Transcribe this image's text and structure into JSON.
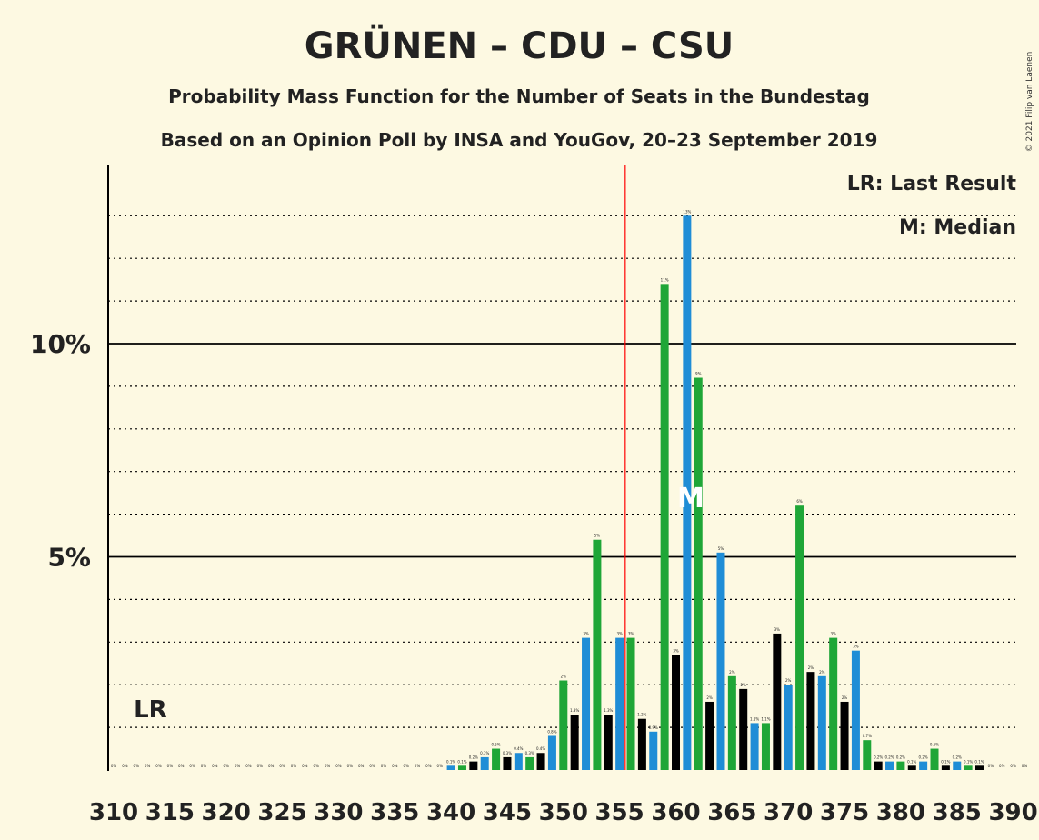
{
  "page": {
    "title": "GRÜNEN – CDU – CSU",
    "subtitle1": "Probability Mass Function for the Number of Seats in the Bundestag",
    "subtitle2": "Based on an Opinion Poll by INSA and YouGov, 20–23 September 2019",
    "legend_lr": "LR: Last Result",
    "legend_m": "M: Median",
    "copyright": "© 2021 Filip van Laenen",
    "lr_label": "LR",
    "median_label": "M"
  },
  "colors": {
    "background": "#fdf9e2",
    "black": "#000000",
    "blue": "#1f8dd6",
    "green": "#1fa637",
    "majority_line": "#ff0000"
  },
  "chart_data": {
    "type": "bar",
    "x_start": 310,
    "x_end": 390,
    "ylim": [
      0,
      14
    ],
    "yticks": [
      {
        "value": 5,
        "label": "5%"
      },
      {
        "value": 10,
        "label": "10%"
      }
    ],
    "x_tick_labels": [
      "310",
      "315",
      "320",
      "325",
      "330",
      "335",
      "340",
      "345",
      "350",
      "355",
      "360",
      "365",
      "370",
      "375",
      "380",
      "385",
      "390"
    ],
    "majority_seat": 355.5,
    "last_result_seat": 311,
    "median_seat": 361,
    "bar_color_cycle": [
      "blue",
      "green",
      "black"
    ],
    "bars": [
      {
        "seat": 310,
        "value": 0,
        "label": "0%"
      },
      {
        "seat": 311,
        "value": 0,
        "label": "0%"
      },
      {
        "seat": 312,
        "value": 0,
        "label": "0%"
      },
      {
        "seat": 313,
        "value": 0,
        "label": "0%"
      },
      {
        "seat": 314,
        "value": 0,
        "label": "0%"
      },
      {
        "seat": 315,
        "value": 0,
        "label": "0%"
      },
      {
        "seat": 316,
        "value": 0,
        "label": "0%"
      },
      {
        "seat": 317,
        "value": 0,
        "label": "0%"
      },
      {
        "seat": 318,
        "value": 0,
        "label": "0%"
      },
      {
        "seat": 319,
        "value": 0,
        "label": "0%"
      },
      {
        "seat": 320,
        "value": 0,
        "label": "0%"
      },
      {
        "seat": 321,
        "value": 0,
        "label": "0%"
      },
      {
        "seat": 322,
        "value": 0,
        "label": "0%"
      },
      {
        "seat": 323,
        "value": 0,
        "label": "0%"
      },
      {
        "seat": 324,
        "value": 0,
        "label": "0%"
      },
      {
        "seat": 325,
        "value": 0,
        "label": "0%"
      },
      {
        "seat": 326,
        "value": 0,
        "label": "0%"
      },
      {
        "seat": 327,
        "value": 0,
        "label": "0%"
      },
      {
        "seat": 328,
        "value": 0,
        "label": "0%"
      },
      {
        "seat": 329,
        "value": 0,
        "label": "0%"
      },
      {
        "seat": 330,
        "value": 0,
        "label": "0%"
      },
      {
        "seat": 331,
        "value": 0,
        "label": "0%"
      },
      {
        "seat": 332,
        "value": 0,
        "label": "0%"
      },
      {
        "seat": 333,
        "value": 0,
        "label": "0%"
      },
      {
        "seat": 334,
        "value": 0,
        "label": "0%"
      },
      {
        "seat": 335,
        "value": 0,
        "label": "0%"
      },
      {
        "seat": 336,
        "value": 0,
        "label": "0%"
      },
      {
        "seat": 337,
        "value": 0,
        "label": "0%"
      },
      {
        "seat": 338,
        "value": 0,
        "label": "0%"
      },
      {
        "seat": 339,
        "value": 0,
        "label": "0%"
      },
      {
        "seat": 340,
        "value": 0.1,
        "label": "0.1%"
      },
      {
        "seat": 341,
        "value": 0.1,
        "label": "0.1%"
      },
      {
        "seat": 342,
        "value": 0.2,
        "label": "0.2%"
      },
      {
        "seat": 343,
        "value": 0.3,
        "label": "0.3%"
      },
      {
        "seat": 344,
        "value": 0.5,
        "label": "0.5%"
      },
      {
        "seat": 345,
        "value": 0.3,
        "label": "0.3%"
      },
      {
        "seat": 346,
        "value": 0.4,
        "label": "0.4%"
      },
      {
        "seat": 347,
        "value": 0.3,
        "label": "0.3%"
      },
      {
        "seat": 348,
        "value": 0.4,
        "label": "0.4%"
      },
      {
        "seat": 349,
        "value": 0.8,
        "label": "0.8%"
      },
      {
        "seat": 350,
        "value": 2.1,
        "label": "2%"
      },
      {
        "seat": 351,
        "value": 1.3,
        "label": "1.3%"
      },
      {
        "seat": 352,
        "value": 3.1,
        "label": "3%"
      },
      {
        "seat": 353,
        "value": 5.4,
        "label": "5%"
      },
      {
        "seat": 354,
        "value": 1.3,
        "label": "1.3%"
      },
      {
        "seat": 355,
        "value": 3.1,
        "label": "3%"
      },
      {
        "seat": 356,
        "value": 3.1,
        "label": "3%"
      },
      {
        "seat": 357,
        "value": 1.2,
        "label": "1.2%"
      },
      {
        "seat": 358,
        "value": 0.9,
        "label": "0.9%"
      },
      {
        "seat": 359,
        "value": 11.4,
        "label": "11%"
      },
      {
        "seat": 360,
        "value": 2.7,
        "label": "3%"
      },
      {
        "seat": 361,
        "value": 13,
        "label": "13%"
      },
      {
        "seat": 362,
        "value": 9.2,
        "label": "9%"
      },
      {
        "seat": 363,
        "value": 1.6,
        "label": "2%"
      },
      {
        "seat": 364,
        "value": 5.1,
        "label": "5%"
      },
      {
        "seat": 365,
        "value": 2.2,
        "label": "2%"
      },
      {
        "seat": 366,
        "value": 1.9,
        "label": "2%"
      },
      {
        "seat": 367,
        "value": 1.1,
        "label": "1.1%"
      },
      {
        "seat": 368,
        "value": 1.1,
        "label": "1.1%"
      },
      {
        "seat": 369,
        "value": 3.2,
        "label": "3%"
      },
      {
        "seat": 370,
        "value": 2,
        "label": "2%"
      },
      {
        "seat": 371,
        "value": 6.2,
        "label": "6%"
      },
      {
        "seat": 372,
        "value": 2.3,
        "label": "2%"
      },
      {
        "seat": 373,
        "value": 2.2,
        "label": "2%"
      },
      {
        "seat": 374,
        "value": 3.1,
        "label": "3%"
      },
      {
        "seat": 375,
        "value": 1.6,
        "label": "2%"
      },
      {
        "seat": 376,
        "value": 2.8,
        "label": "3%"
      },
      {
        "seat": 377,
        "value": 0.7,
        "label": "0.7%"
      },
      {
        "seat": 378,
        "value": 0.2,
        "label": "0.2%"
      },
      {
        "seat": 379,
        "value": 0.2,
        "label": "0.2%"
      },
      {
        "seat": 380,
        "value": 0.2,
        "label": "0.2%"
      },
      {
        "seat": 381,
        "value": 0.1,
        "label": "0.1%"
      },
      {
        "seat": 382,
        "value": 0.2,
        "label": "0.2%"
      },
      {
        "seat": 383,
        "value": 0.5,
        "label": "0.5%"
      },
      {
        "seat": 384,
        "value": 0.1,
        "label": "0.1%"
      },
      {
        "seat": 385,
        "value": 0.2,
        "label": "0.2%"
      },
      {
        "seat": 386,
        "value": 0.1,
        "label": "0.1%"
      },
      {
        "seat": 387,
        "value": 0.1,
        "label": "0.1%"
      },
      {
        "seat": 388,
        "value": 0,
        "label": "0%"
      },
      {
        "seat": 389,
        "value": 0,
        "label": "0%"
      },
      {
        "seat": 390,
        "value": 0,
        "label": "0%"
      },
      {
        "seat": 391,
        "value": 0,
        "label": "0%"
      }
    ]
  }
}
